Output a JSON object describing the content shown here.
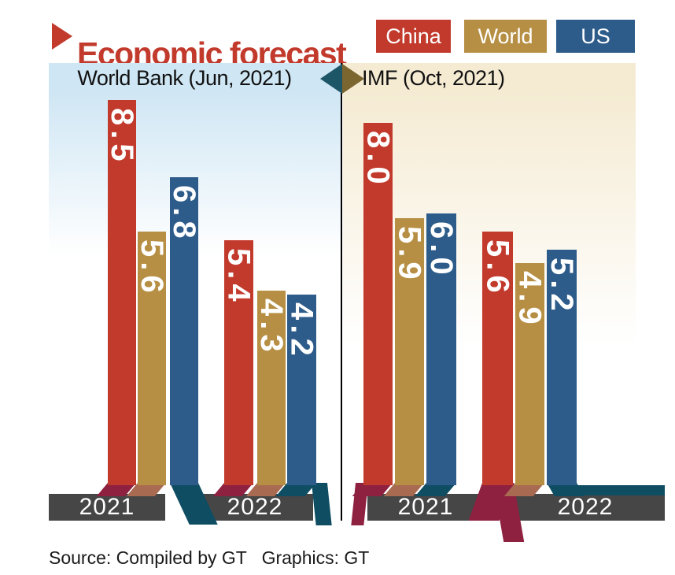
{
  "header": {
    "title": "Economic forecast",
    "accent_color": "#c13a2c"
  },
  "legend": [
    {
      "label": "China",
      "color": "#c23a2c",
      "shadow_color": "#8e2040"
    },
    {
      "label": "World",
      "color": "#b68f44",
      "shadow_color": "#a86b52"
    },
    {
      "label": "US",
      "color": "#2e5c8a",
      "shadow_color": "#0f4d63"
    }
  ],
  "panels_ui": {
    "left_bg": "#cfe6f4",
    "right_bg": "#f5ebd3",
    "diamond_left_color": "#1d5666",
    "diamond_right_color": "#7c6630",
    "plinth_color": "#464646",
    "divider_color": "#000000",
    "year_text_color": "#ffffff",
    "value_text_color": "#ffffff"
  },
  "footer": {
    "source": "Source: Compiled by GT   Graphics: GT"
  },
  "chart_data": {
    "type": "bar",
    "title": "Economic forecast",
    "categories": [
      "2021",
      "2022"
    ],
    "ylim": [
      0,
      8.5
    ],
    "grid": false,
    "legend_position": "top-right",
    "value_label_style": "white bold numbers rotated 90deg at bar tops",
    "panels": [
      {
        "title": "World Bank (Jun, 2021)",
        "series": [
          {
            "name": "China",
            "values": [
              8.5,
              5.4
            ]
          },
          {
            "name": "World",
            "values": [
              5.6,
              4.3
            ]
          },
          {
            "name": "US",
            "values": [
              6.8,
              4.2
            ]
          }
        ]
      },
      {
        "title": "IMF (Oct, 2021)",
        "series": [
          {
            "name": "China",
            "values": [
              8.0,
              5.6
            ]
          },
          {
            "name": "World",
            "values": [
              5.9,
              4.9
            ]
          },
          {
            "name": "US",
            "values": [
              6.0,
              5.2
            ]
          }
        ]
      }
    ]
  }
}
